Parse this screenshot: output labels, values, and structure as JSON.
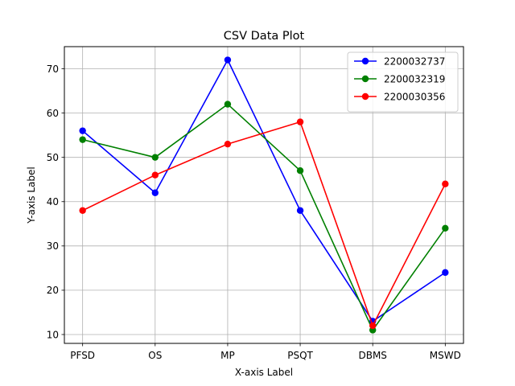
{
  "chart_data": {
    "type": "line",
    "title": "CSV Data Plot",
    "xlabel": "X-axis Label",
    "ylabel": "Y-axis Label",
    "categories": [
      "PFSD",
      "OS",
      "MP",
      "PSQT",
      "DBMS",
      "MSWD"
    ],
    "ylim": [
      8,
      75
    ],
    "yticks": [
      10,
      20,
      30,
      40,
      50,
      60,
      70
    ],
    "grid": true,
    "legend_position": "top-right",
    "series": [
      {
        "name": "2200032737",
        "color": "#0000ff",
        "values": [
          56,
          42,
          72,
          38,
          13,
          24
        ]
      },
      {
        "name": "2200032319",
        "color": "#008000",
        "values": [
          54,
          50,
          62,
          47,
          11,
          34
        ]
      },
      {
        "name": "2200030356",
        "color": "#ff0000",
        "values": [
          38,
          46,
          53,
          58,
          12,
          44
        ]
      }
    ]
  }
}
